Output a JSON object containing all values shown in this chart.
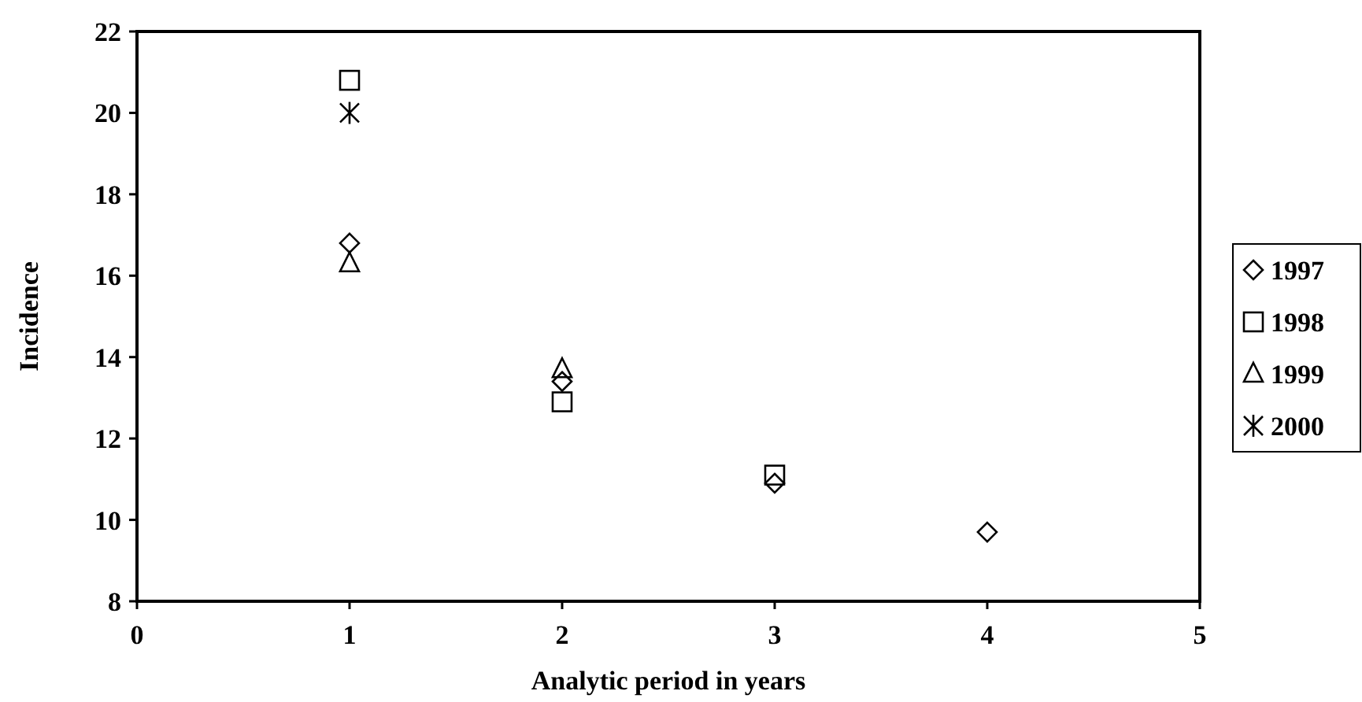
{
  "chart_data": {
    "type": "scatter",
    "xlabel": "Analytic period in years",
    "ylabel": "Incidence",
    "xlim": [
      0,
      5
    ],
    "xticks": [
      0,
      1,
      2,
      3,
      4,
      5
    ],
    "ylim": [
      8,
      22
    ],
    "yticks": [
      8,
      10,
      12,
      14,
      16,
      18,
      20,
      22
    ],
    "grid": false,
    "legend": "right",
    "series": [
      {
        "name": "1997",
        "color": "#000000",
        "marker": "diamond",
        "x": [
          1,
          2,
          3,
          4
        ],
        "values": [
          16.8,
          13.4,
          10.9,
          9.7
        ]
      },
      {
        "name": "1998",
        "color": "#000000",
        "marker": "square",
        "x": [
          1,
          2,
          3
        ],
        "values": [
          20.8,
          12.9,
          11.1
        ]
      },
      {
        "name": "1999",
        "color": "#000000",
        "marker": "triangle",
        "x": [
          1,
          2
        ],
        "values": [
          16.3,
          13.7
        ]
      },
      {
        "name": "2000",
        "color": "#000000",
        "marker": "cross",
        "x": [
          1
        ],
        "values": [
          20.0
        ]
      }
    ]
  }
}
